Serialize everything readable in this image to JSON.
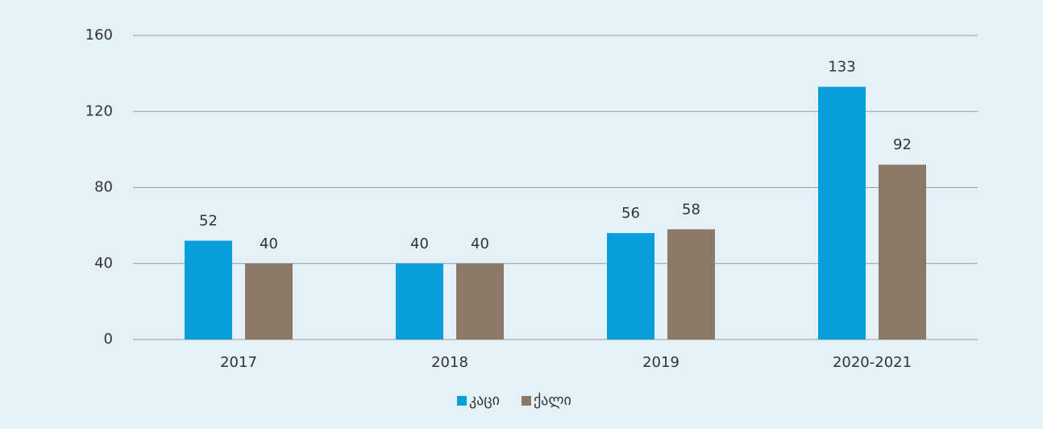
{
  "chart_data": {
    "type": "bar",
    "categories": [
      "2017",
      "2018",
      "2019",
      "2020-2021"
    ],
    "series": [
      {
        "name": "კაცი",
        "color": "#069edb",
        "values": [
          52,
          40,
          56,
          133
        ]
      },
      {
        "name": "ქალი",
        "color": "#8b7966",
        "values": [
          40,
          40,
          58,
          92
        ]
      }
    ],
    "ylim": [
      0,
      160
    ],
    "yticks": [
      0,
      40,
      80,
      120,
      160
    ],
    "grid": true,
    "legend": "bottom"
  }
}
